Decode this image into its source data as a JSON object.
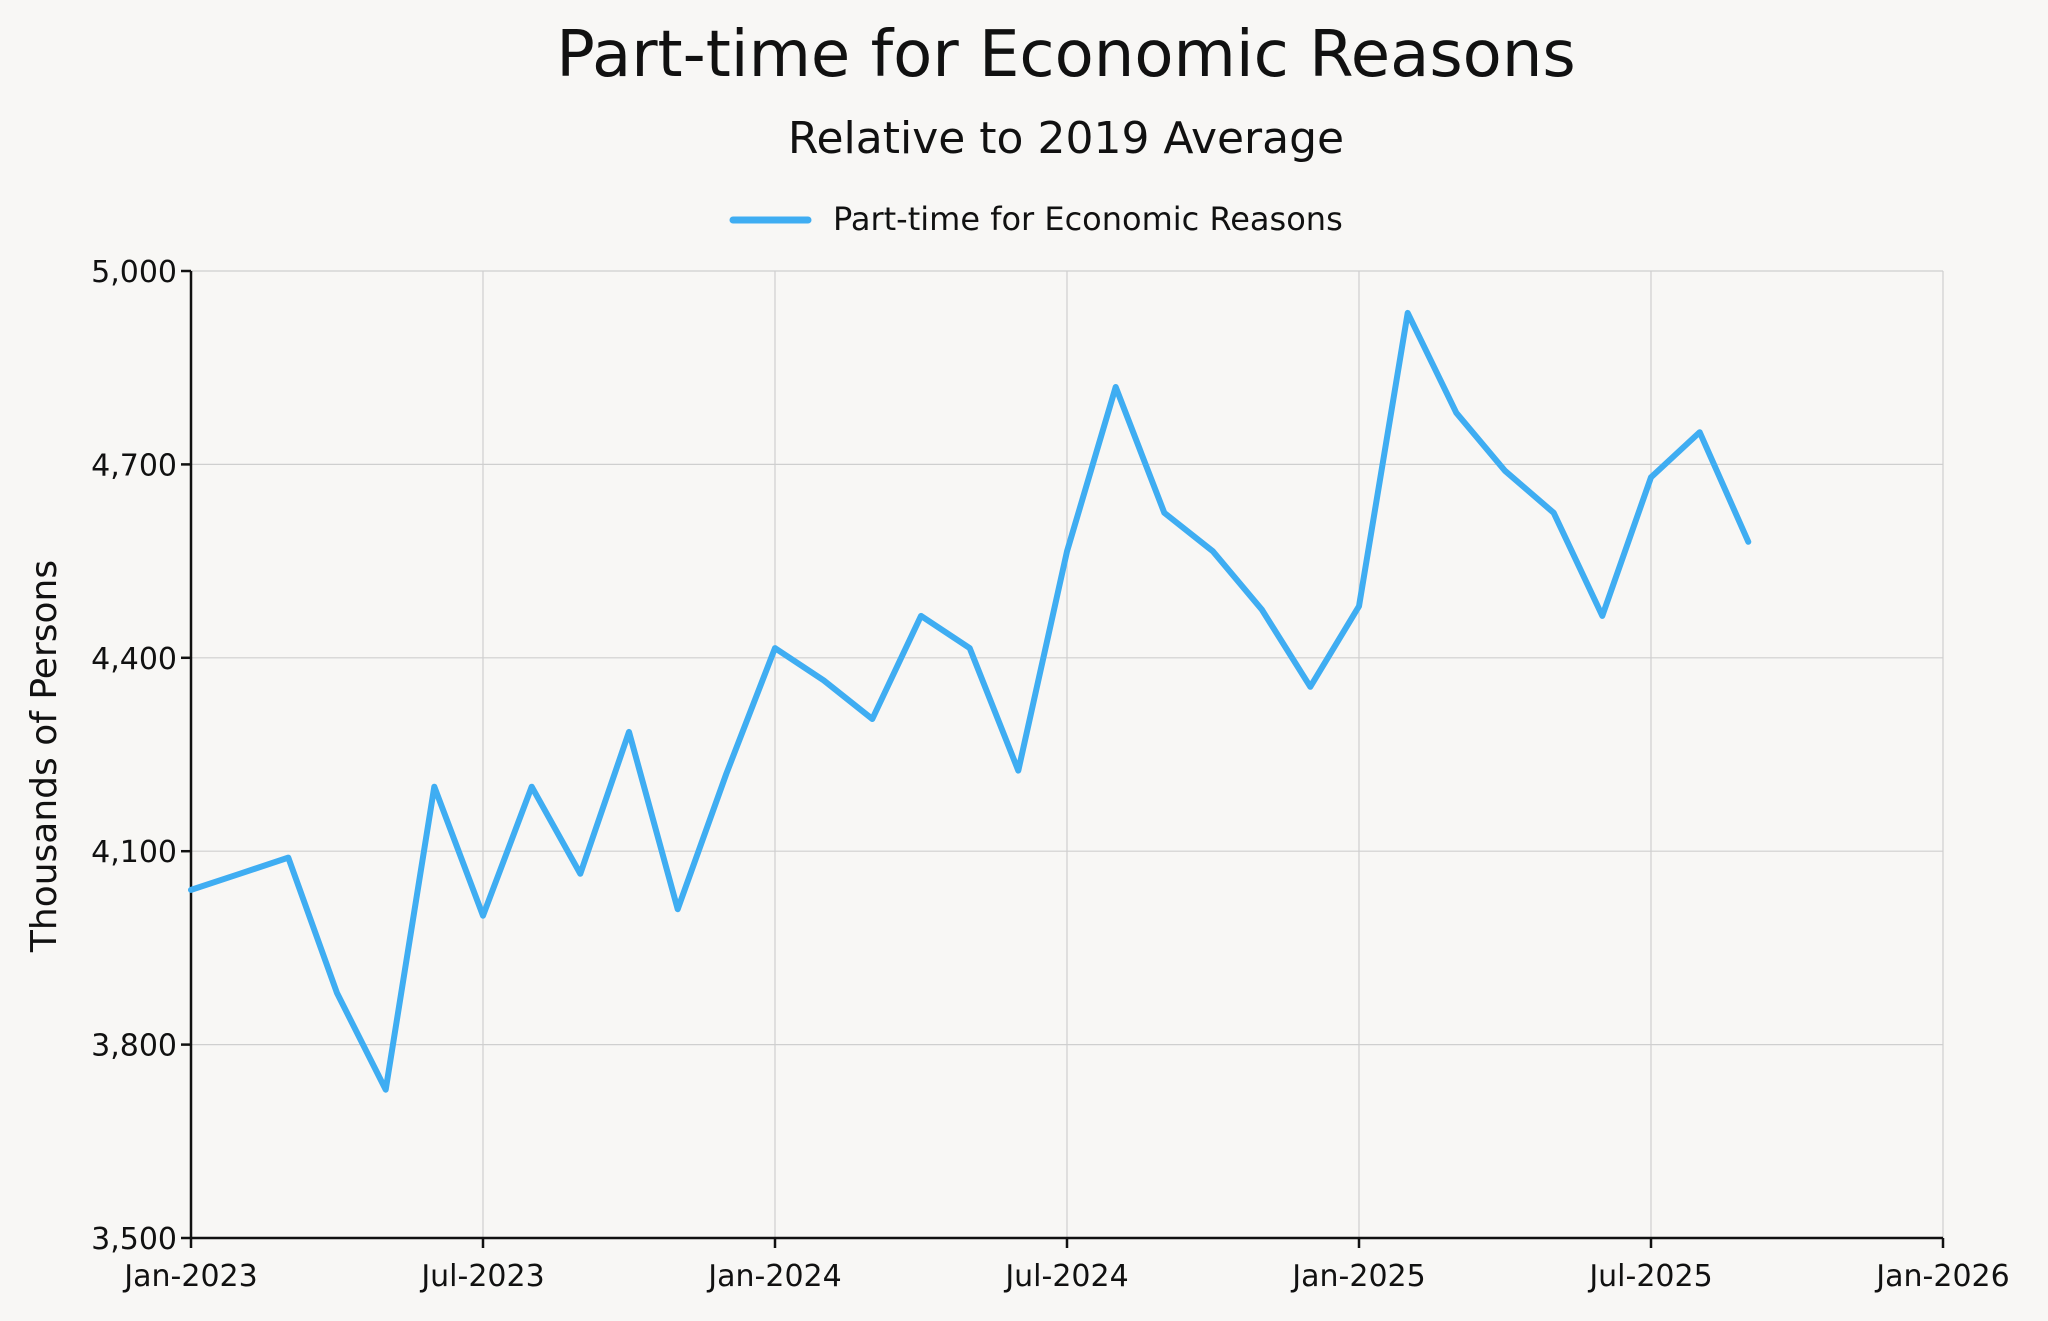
{
  "title": "Part-time for Economic Reasons",
  "subtitle": "Relative to 2019 Average",
  "legend_label": "Part-time for Economic Reasons",
  "ylabel": "Thousands of Persons",
  "colors": {
    "line": "#3fadf2",
    "background": "#f8f7f5",
    "grid": "#cfcfcf"
  },
  "chart_data": {
    "type": "line",
    "title": "Part-time for Economic Reasons",
    "subtitle": "Relative to 2019 Average",
    "xlabel": "",
    "ylabel": "Thousands of Persons",
    "xlim": [
      "2023-01",
      "2026-01"
    ],
    "ylim": [
      3500,
      5000
    ],
    "grid": true,
    "legend_position": "top-center",
    "x_ticks": [
      "2023-01",
      "2023-07",
      "2024-01",
      "2024-07",
      "2025-01",
      "2025-07",
      "2026-01"
    ],
    "x_tick_labels": [
      "Jan-2023",
      "Jul-2023",
      "Jan-2024",
      "Jul-2024",
      "Jan-2025",
      "Jul-2025",
      "Jan-2026"
    ],
    "y_ticks": [
      3500,
      3800,
      4100,
      4400,
      4700,
      5000
    ],
    "y_tick_labels": [
      "3,500",
      "3,800",
      "4,100",
      "4,400",
      "4,700",
      "5,000"
    ],
    "series": [
      {
        "name": "Part-time for Economic Reasons",
        "x": [
          "2023-01",
          "2023-02",
          "2023-03",
          "2023-04",
          "2023-05",
          "2023-06",
          "2023-07",
          "2023-08",
          "2023-09",
          "2023-10",
          "2023-11",
          "2023-12",
          "2024-01",
          "2024-02",
          "2024-03",
          "2024-04",
          "2024-05",
          "2024-06",
          "2024-07",
          "2024-08",
          "2024-09",
          "2024-10",
          "2024-11",
          "2024-12",
          "2025-01",
          "2025-02",
          "2025-03",
          "2025-04",
          "2025-05",
          "2025-06",
          "2025-07",
          "2025-08",
          "2025-09"
        ],
        "values": [
          4040,
          4065,
          4090,
          3880,
          3730,
          4200,
          4000,
          4200,
          4065,
          4285,
          4010,
          4220,
          4415,
          4365,
          4305,
          4465,
          4415,
          4225,
          4565,
          4820,
          4625,
          4565,
          4475,
          4355,
          4480,
          4935,
          4780,
          4690,
          4625,
          4465,
          4680,
          4750,
          4580
        ]
      }
    ]
  }
}
